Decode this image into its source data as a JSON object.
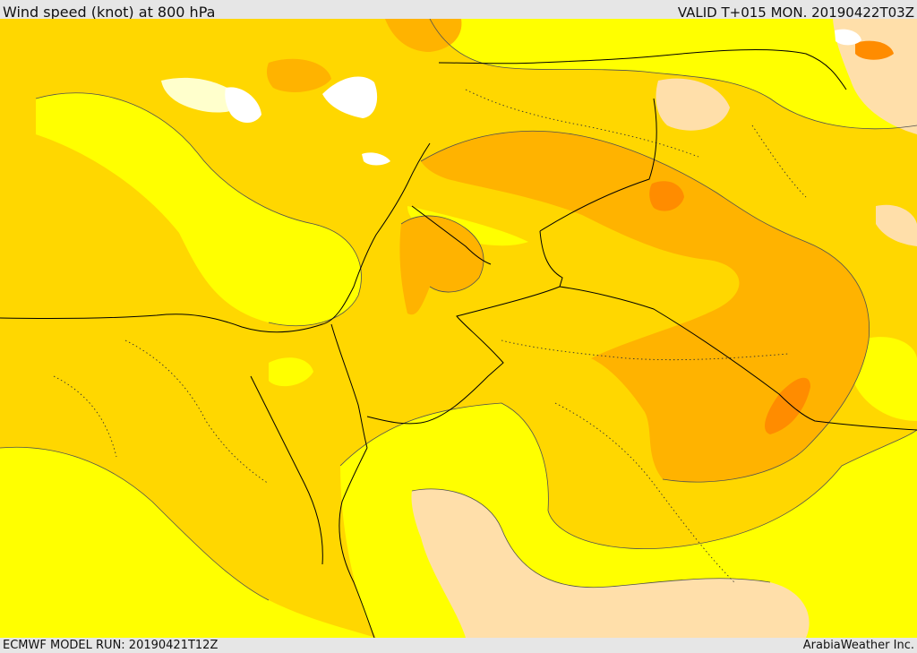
{
  "header": {
    "title": "Wind speed (knot) at 800 hPa",
    "valid": "VALID T+015 MON. 20190422T03Z"
  },
  "footer": {
    "model_run": "ECMWF MODEL RUN: 20190421T12Z",
    "credit": "ArabiaWeather Inc."
  },
  "map": {
    "variable": "wind speed",
    "units": "knot",
    "level": "800 hPa",
    "colors": {
      "calm": "#ffffff",
      "low": "#ffffcc",
      "light": "#ffff00",
      "moderate": "#ffd700",
      "fresh": "#ffb300",
      "strong": "#ff8c00",
      "peach": "#ffdfaa",
      "border": "#000000",
      "contour": "#505050"
    }
  }
}
